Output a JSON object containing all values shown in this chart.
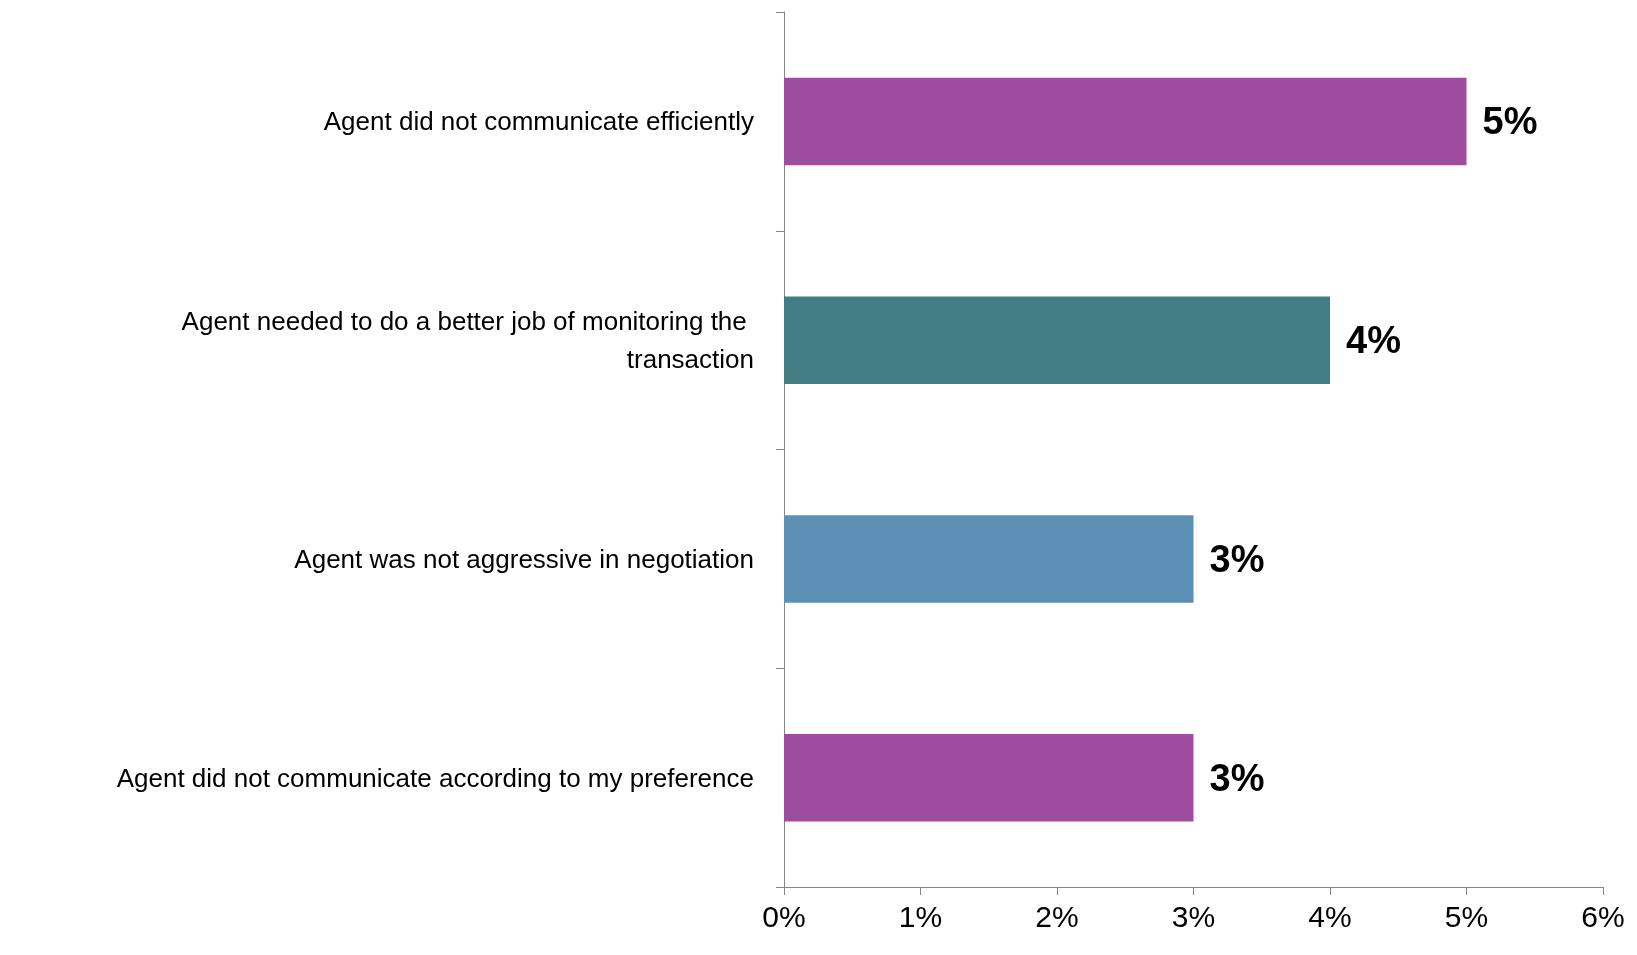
{
  "chart_data": {
    "type": "bar",
    "orientation": "horizontal",
    "categories": [
      "Agent did not communicate efficiently",
      "Agent needed to do a better job of monitoring the transaction",
      "Agent was not aggressive in negotiation",
      "Agent did not communicate according to my preference"
    ],
    "values": [
      5,
      4,
      3,
      3
    ],
    "colors": [
      "#9e4d9e",
      "#437e84",
      "#5b8fb4",
      "#9e4d9e"
    ],
    "value_labels": [
      "5%",
      "4%",
      "3%",
      "3%"
    ],
    "xlim": [
      0,
      6
    ],
    "xticks": [
      {
        "value": 0,
        "label": "0%"
      },
      {
        "value": 1,
        "label": "1%"
      },
      {
        "value": 2,
        "label": "2%"
      },
      {
        "value": 3,
        "label": "3%"
      },
      {
        "value": 4,
        "label": "4%"
      },
      {
        "value": 5,
        "label": "5%"
      },
      {
        "value": 6,
        "label": "6%"
      }
    ],
    "grid": false
  }
}
